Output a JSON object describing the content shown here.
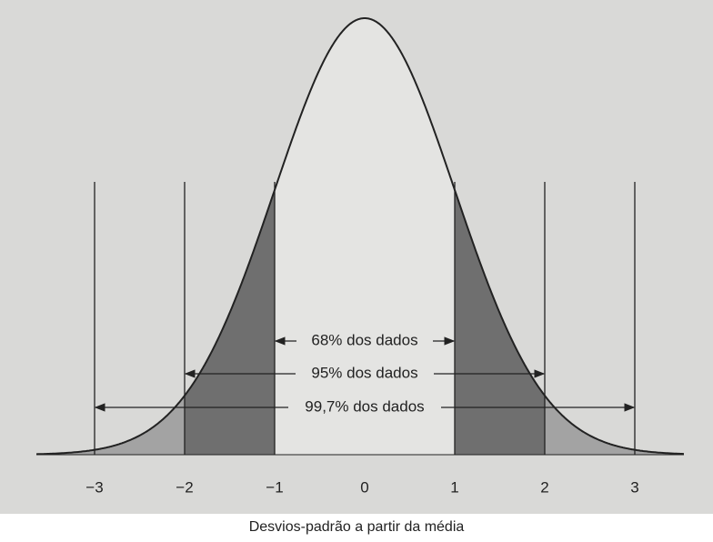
{
  "figure": {
    "ticks": [
      "−3",
      "−2",
      "−1",
      "0",
      "1",
      "2",
      "3"
    ],
    "ranges": [
      "68% dos dados",
      "95% dos dados",
      "99,7% dos dados"
    ],
    "axis_label": "Desvios-padrão a partir da média"
  }
}
